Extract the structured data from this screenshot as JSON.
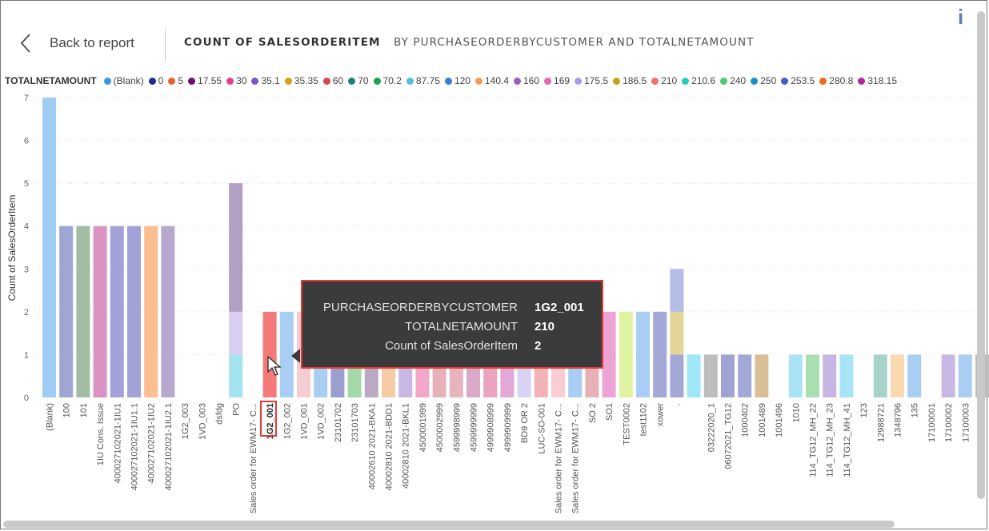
{
  "header": {
    "back_label": "Back to report",
    "title": "COUNT OF SALESORDERITEM",
    "subtitle": "BY PURCHASEORDERBYCUSTOMER AND TOTALNETAMOUNT",
    "info_icon": "i"
  },
  "legend": {
    "title": "TOTALNETAMOUNT",
    "items": [
      {
        "label": "(Blank)",
        "color": "#3a96e8"
      },
      {
        "label": "0",
        "color": "#1f2a9a"
      },
      {
        "label": "5",
        "color": "#e4622e"
      },
      {
        "label": "17.55",
        "color": "#6a1070"
      },
      {
        "label": "30",
        "color": "#e0408e"
      },
      {
        "label": "35.1",
        "color": "#7a56c2"
      },
      {
        "label": "35.35",
        "color": "#d7a018"
      },
      {
        "label": "60",
        "color": "#d6484f"
      },
      {
        "label": "70",
        "color": "#1b7f7a"
      },
      {
        "label": "70.2",
        "color": "#1ea34a"
      },
      {
        "label": "87.75",
        "color": "#4fc0d8"
      },
      {
        "label": "120",
        "color": "#3a7be0"
      },
      {
        "label": "140.4",
        "color": "#f59a58"
      },
      {
        "label": "160",
        "color": "#9b5fc0"
      },
      {
        "label": "169",
        "color": "#e866ae"
      },
      {
        "label": "175.5",
        "color": "#a99ae8"
      },
      {
        "label": "186.5",
        "color": "#c2a617"
      },
      {
        "label": "210",
        "color": "#ef6f6f"
      },
      {
        "label": "210.6",
        "color": "#2ac9c0"
      },
      {
        "label": "240",
        "color": "#4ecb6c"
      },
      {
        "label": "250",
        "color": "#1d8fc8"
      },
      {
        "label": "253.5",
        "color": "#4a5ac8"
      },
      {
        "label": "280.8",
        "color": "#f06a1c"
      },
      {
        "label": "318.15",
        "color": "#b02aa4"
      }
    ]
  },
  "tooltip": {
    "rows": [
      {
        "key": "PURCHASEORDERBYCUSTOMER",
        "value": "1G2_001"
      },
      {
        "key": "TOTALNETAMOUNT",
        "value": "210"
      },
      {
        "key": "Count of SalesOrderItem",
        "value": "2"
      }
    ]
  },
  "chart_data": {
    "type": "bar",
    "stacked": true,
    "title": "COUNT OF SALESORDERITEM BY PURCHASEORDERBYCUSTOMER AND TOTALNETAMOUNT",
    "xlabel": "",
    "ylabel": "Count of SalesOrderItem",
    "ylim": [
      0,
      7
    ],
    "yticks": [
      0,
      1,
      2,
      3,
      4,
      5,
      6,
      7
    ],
    "grid": true,
    "legend_position": "top",
    "highlighted_category": "1G2_001",
    "categories": [
      {
        "label": "(Blank)",
        "segments": [
          {
            "value": 7,
            "color": "#9fcdf3"
          }
        ]
      },
      {
        "label": "100",
        "segments": [
          {
            "value": 4,
            "color": "#9fa6d3"
          }
        ]
      },
      {
        "label": "101",
        "segments": [
          {
            "value": 4,
            "color": "#a2bda3"
          }
        ]
      },
      {
        "label": "1IU Cons. Issue",
        "segments": [
          {
            "value": 4,
            "color": "#db93c4"
          }
        ]
      },
      {
        "label": "400027102021-1IU1",
        "segments": [
          {
            "value": 4,
            "color": "#a2a2d8"
          }
        ]
      },
      {
        "label": "400027102021-1IU1.1",
        "segments": [
          {
            "value": 4,
            "color": "#a2a2d8"
          }
        ]
      },
      {
        "label": "400027102021-1IU2",
        "segments": [
          {
            "value": 4,
            "color": "#fbbf92"
          }
        ]
      },
      {
        "label": "400027102021-1IU2.1",
        "segments": [
          {
            "value": 4,
            "color": "#b7a8cf"
          }
        ]
      },
      {
        "label": "1G2_003",
        "segments": []
      },
      {
        "label": "1VD_003",
        "segments": []
      },
      {
        "label": "dsfdg",
        "segments": []
      },
      {
        "label": "PO",
        "segments": [
          {
            "value": 1,
            "color": "#a2e4f0"
          },
          {
            "value": 1,
            "color": "#d9cdf3"
          },
          {
            "value": 3,
            "color": "#b39fc4"
          }
        ]
      },
      {
        "label": "Sales order for EWM17- C...",
        "segments": []
      },
      {
        "label": "1G2_001",
        "segments": [
          {
            "value": 2,
            "color": "#f47a7a"
          }
        ]
      },
      {
        "label": "1G2_002",
        "segments": [
          {
            "value": 2,
            "color": "#a9cdf3"
          }
        ]
      },
      {
        "label": "1VD_001",
        "segments": [
          {
            "value": 2,
            "color": "#f7cdd4"
          }
        ]
      },
      {
        "label": "1VD_002",
        "segments": [
          {
            "value": 2,
            "color": "#a9cdf3"
          }
        ]
      },
      {
        "label": "23101702",
        "segments": [
          {
            "value": 1,
            "color": "#9a9fce"
          }
        ]
      },
      {
        "label": "23101703",
        "segments": [
          {
            "value": 1,
            "color": "#a3d9a9"
          }
        ]
      },
      {
        "label": "40002610 2021-BKA1",
        "segments": [
          {
            "value": 1,
            "color": "#b9a9c3"
          }
        ]
      },
      {
        "label": "40002810 2021-BDD1",
        "segments": [
          {
            "value": 1,
            "color": "#f4cba3"
          }
        ]
      },
      {
        "label": "40002810 2021-BKL1",
        "segments": [
          {
            "value": 1,
            "color": "#c9b8e3"
          }
        ]
      },
      {
        "label": "4500001999",
        "segments": [
          {
            "value": 1,
            "color": "#f2a6c8"
          }
        ]
      },
      {
        "label": "4500002999",
        "segments": [
          {
            "value": 1,
            "color": "#e6b1b8"
          }
        ]
      },
      {
        "label": "4599998999",
        "segments": [
          {
            "value": 1,
            "color": "#e8b4bc"
          }
        ]
      },
      {
        "label": "4599999999",
        "segments": [
          {
            "value": 1,
            "color": "#d9a9c8"
          }
        ]
      },
      {
        "label": "4999908999",
        "segments": [
          {
            "value": 1,
            "color": "#eaa4c0"
          }
        ]
      },
      {
        "label": "4999909999",
        "segments": [
          {
            "value": 1,
            "color": "#e2a8d6"
          }
        ]
      },
      {
        "label": "BD9 OR 2",
        "segments": [
          {
            "value": 1,
            "color": "#d9d3f3"
          }
        ]
      },
      {
        "label": "LUC-SO-001",
        "segments": [
          {
            "value": 1,
            "color": "#f1b3b8"
          }
        ]
      },
      {
        "label": "Sales order for EWM17- C...",
        "segments": [
          {
            "value": 1,
            "color": "#f8cdd3"
          }
        ]
      },
      {
        "label": "Sales order for EWM17- C...",
        "segments": [
          {
            "value": 2,
            "color": "#a9cdf3"
          }
        ]
      },
      {
        "label": "SO 2",
        "segments": [
          {
            "value": 2,
            "color": "#e6b1b8"
          }
        ]
      },
      {
        "label": "SO1",
        "segments": [
          {
            "value": 2,
            "color": "#eea3d6"
          }
        ]
      },
      {
        "label": "TEST0002",
        "segments": [
          {
            "value": 2,
            "color": "#e0f3a0"
          }
        ]
      },
      {
        "label": "test1102",
        "segments": [
          {
            "value": 2,
            "color": "#a9cdf3"
          }
        ]
      },
      {
        "label": "xower",
        "segments": [
          {
            "value": 2,
            "color": "#a3a8d6"
          }
        ]
      },
      {
        "label": ".",
        "segments": [
          {
            "value": 1,
            "color": "#a3a8d6"
          },
          {
            "value": 1,
            "color": "#e3d497"
          },
          {
            "value": 1,
            "color": "#b3bde6"
          }
        ]
      },
      {
        "label": "",
        "segments": [
          {
            "value": 1,
            "color": "#9ee7f6"
          }
        ]
      },
      {
        "label": "03222020_1",
        "segments": [
          {
            "value": 1,
            "color": "#bebebe"
          }
        ]
      },
      {
        "label": "06072021_TG12",
        "segments": [
          {
            "value": 1,
            "color": "#a3a3d3"
          }
        ]
      },
      {
        "label": "1000402",
        "segments": [
          {
            "value": 1,
            "color": "#a3a8d6"
          }
        ]
      },
      {
        "label": "1001489",
        "segments": [
          {
            "value": 1,
            "color": "#d9bf95"
          }
        ]
      },
      {
        "label": "1001496",
        "segments": []
      },
      {
        "label": "1010",
        "segments": [
          {
            "value": 1,
            "color": "#a9e4f6"
          }
        ]
      },
      {
        "label": "114_TG12_MH_22",
        "segments": [
          {
            "value": 1,
            "color": "#a9dfb0"
          }
        ]
      },
      {
        "label": "114_TG12_MH_23",
        "segments": [
          {
            "value": 1,
            "color": "#c6b6e3"
          }
        ]
      },
      {
        "label": "114_TG12_MH_41",
        "segments": [
          {
            "value": 1,
            "color": "#a9e4f6"
          }
        ]
      },
      {
        "label": "123",
        "segments": []
      },
      {
        "label": "12988721",
        "segments": [
          {
            "value": 1,
            "color": "#a8d3cb"
          }
        ]
      },
      {
        "label": "1348796",
        "segments": [
          {
            "value": 1,
            "color": "#fad9b0"
          }
        ]
      },
      {
        "label": "135",
        "segments": [
          {
            "value": 1,
            "color": "#a9cdf3"
          }
        ]
      },
      {
        "label": "17100001",
        "segments": []
      },
      {
        "label": "17100002",
        "segments": [
          {
            "value": 1,
            "color": "#c9b8e3"
          }
        ]
      },
      {
        "label": "17100003",
        "segments": [
          {
            "value": 1,
            "color": "#a9cdf3"
          }
        ]
      },
      {
        "label": "",
        "segments": [
          {
            "value": 1,
            "color": "#bebebe"
          }
        ]
      }
    ]
  }
}
